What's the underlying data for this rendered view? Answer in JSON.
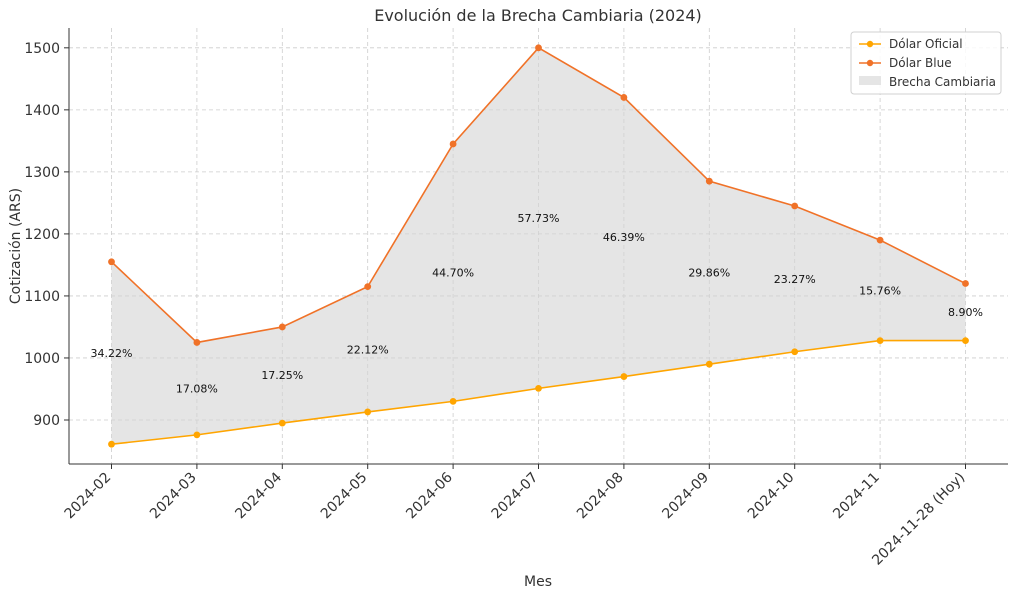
{
  "chart_data": {
    "type": "line",
    "title": "Evolución de la Brecha Cambiaria (2024)",
    "xlabel": "Mes",
    "ylabel": "Cotización (ARS)",
    "categories": [
      "2024-02",
      "2024-03",
      "2024-04",
      "2024-05",
      "2024-06",
      "2024-07",
      "2024-08",
      "2024-09",
      "2024-10",
      "2024-11",
      "2024-11-28 (Hoy)"
    ],
    "series": [
      {
        "name": "Dólar Oficial",
        "color": "#ffa500",
        "values": [
          861,
          876,
          895,
          913,
          930,
          951,
          970,
          990,
          1010,
          1028,
          1028
        ]
      },
      {
        "name": "Dólar Blue",
        "color": "#f07228",
        "values": [
          1155,
          1025,
          1050,
          1115,
          1345,
          1500,
          1420,
          1285,
          1245,
          1190,
          1120
        ]
      }
    ],
    "fill": {
      "name": "Brecha Cambiaria",
      "color": "#d3d3d3"
    },
    "gap_labels": [
      "34.22%",
      "17.08%",
      "17.25%",
      "22.12%",
      "44.70%",
      "57.73%",
      "46.39%",
      "29.86%",
      "23.27%",
      "15.76%",
      "8.90%"
    ],
    "y_ticks": [
      900,
      1000,
      1100,
      1200,
      1300,
      1400,
      1500
    ],
    "ylim": [
      829.05,
      1531.95
    ],
    "grid": true,
    "legend_position": "top-right"
  }
}
